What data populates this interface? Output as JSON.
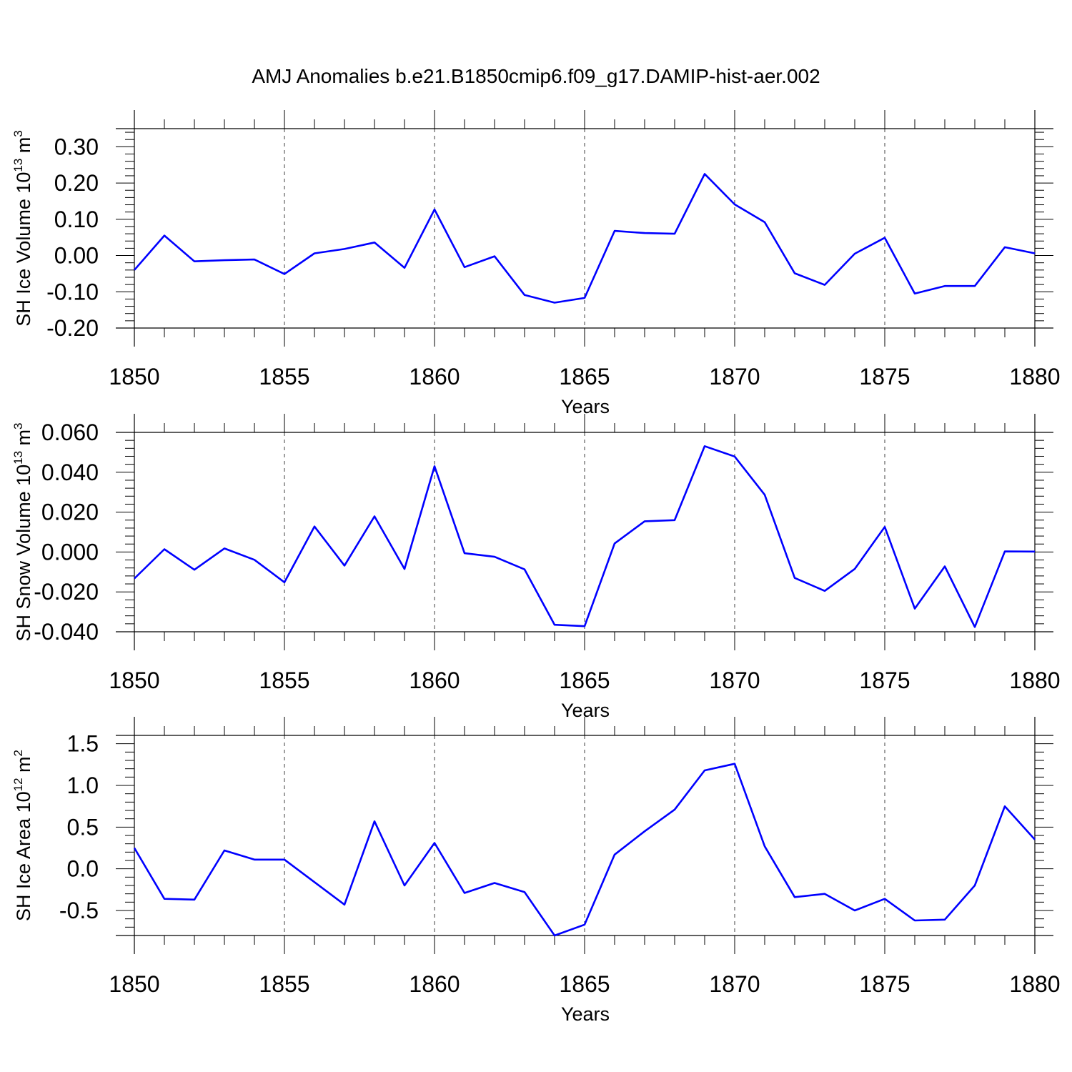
{
  "title": "AMJ Anomalies b.e21.B1850cmip6.f09_g17.DAMIP-hist-aer.002",
  "colors": {
    "line": "#0000ff",
    "axis": "#000000",
    "grid": "#000000"
  },
  "chart_data": [
    {
      "type": "line",
      "title": "AMJ Anomalies b.e21.B1850cmip6.f09_g17.DAMIP-hist-aer.002",
      "xlabel": "Years",
      "ylabel": {
        "base": "SH Ice Volume 10",
        "exp1": "13",
        "unit": " m",
        "exp2": "3"
      },
      "xlim": [
        1850,
        1880
      ],
      "ylim": [
        -0.2,
        0.35
      ],
      "grid": "dashed vertical at major x ticks",
      "x_ticks": [
        1850,
        1855,
        1860,
        1865,
        1870,
        1875,
        1880
      ],
      "x_tick_labels": [
        "1850",
        "1855",
        "1860",
        "1865",
        "1870",
        "1875",
        "1880"
      ],
      "y_ticks": [
        -0.2,
        -0.1,
        0.0,
        0.1,
        0.2,
        0.3
      ],
      "y_tick_labels": [
        "-0.20",
        "-0.10",
        "0.00",
        "0.10",
        "0.20",
        "0.30"
      ],
      "y_minor_step": 0.02,
      "x": [
        1850,
        1851,
        1852,
        1853,
        1854,
        1855,
        1856,
        1857,
        1858,
        1859,
        1860,
        1861,
        1862,
        1863,
        1864,
        1865,
        1866,
        1867,
        1868,
        1869,
        1870,
        1871,
        1872,
        1873,
        1874,
        1875,
        1876,
        1877,
        1878,
        1879,
        1880
      ],
      "series": [
        {
          "name": "SH Ice Volume",
          "values": [
            -0.04,
            0.055,
            -0.016,
            -0.013,
            -0.011,
            -0.051,
            0.006,
            0.018,
            0.036,
            -0.034,
            0.127,
            -0.032,
            -0.002,
            -0.109,
            -0.13,
            -0.117,
            0.068,
            0.062,
            0.06,
            0.225,
            0.141,
            0.092,
            -0.049,
            -0.081,
            0.005,
            0.049,
            -0.105,
            -0.084,
            -0.084,
            0.023,
            0.006
          ]
        }
      ]
    },
    {
      "type": "line",
      "title": "",
      "xlabel": "Years",
      "ylabel": {
        "base": "SH Snow Volume 10",
        "exp1": "13",
        "unit": " m",
        "exp2": "3"
      },
      "xlim": [
        1850,
        1880
      ],
      "ylim": [
        -0.04,
        0.06
      ],
      "grid": "dashed vertical at major x ticks",
      "x_ticks": [
        1850,
        1855,
        1860,
        1865,
        1870,
        1875,
        1880
      ],
      "x_tick_labels": [
        "1850",
        "1855",
        "1860",
        "1865",
        "1870",
        "1875",
        "1880"
      ],
      "y_ticks": [
        -0.04,
        -0.02,
        0.0,
        0.02,
        0.04,
        0.06
      ],
      "y_tick_labels": [
        "-0.040",
        "-0.020",
        "0.000",
        "0.020",
        "0.040",
        "0.060"
      ],
      "y_minor_step": 0.004,
      "x": [
        1850,
        1851,
        1852,
        1853,
        1854,
        1855,
        1856,
        1857,
        1858,
        1859,
        1860,
        1861,
        1862,
        1863,
        1864,
        1865,
        1866,
        1867,
        1868,
        1869,
        1870,
        1871,
        1872,
        1873,
        1874,
        1875,
        1876,
        1877,
        1878,
        1879,
        1880
      ],
      "series": [
        {
          "name": "SH Snow Volume",
          "values": [
            -0.0133,
            0.0014,
            -0.0089,
            0.0018,
            -0.0039,
            -0.0152,
            0.0128,
            -0.0068,
            0.0179,
            -0.0085,
            0.043,
            -0.0006,
            -0.0024,
            -0.0087,
            -0.0365,
            -0.0372,
            0.0043,
            0.0154,
            0.016,
            0.0531,
            0.0479,
            0.0287,
            -0.013,
            -0.0195,
            -0.0085,
            0.0126,
            -0.0284,
            -0.0072,
            -0.0376,
            0.0003,
            0.0002
          ]
        }
      ]
    },
    {
      "type": "line",
      "title": "",
      "xlabel": "Years",
      "ylabel": {
        "base": "SH Ice Area 10",
        "exp1": "12",
        "unit": " m",
        "exp2": "2"
      },
      "xlim": [
        1850,
        1880
      ],
      "ylim": [
        -0.8,
        1.6
      ],
      "grid": "dashed vertical at major x ticks",
      "x_ticks": [
        1850,
        1855,
        1860,
        1865,
        1870,
        1875,
        1880
      ],
      "x_tick_labels": [
        "1850",
        "1855",
        "1860",
        "1865",
        "1870",
        "1875",
        "1880"
      ],
      "y_ticks": [
        -0.5,
        0.0,
        0.5,
        1.0,
        1.5
      ],
      "y_tick_labels": [
        "-0.5",
        "0.0",
        "0.5",
        "1.0",
        "1.5"
      ],
      "y_minor_step": 0.1,
      "x": [
        1850,
        1851,
        1852,
        1853,
        1854,
        1855,
        1856,
        1857,
        1858,
        1859,
        1860,
        1861,
        1862,
        1863,
        1864,
        1865,
        1866,
        1867,
        1868,
        1869,
        1870,
        1871,
        1872,
        1873,
        1874,
        1875,
        1876,
        1877,
        1878,
        1879,
        1880
      ],
      "series": [
        {
          "name": "SH Ice Area",
          "values": [
            0.25,
            -0.36,
            -0.37,
            0.22,
            0.11,
            0.11,
            -0.16,
            -0.43,
            0.57,
            -0.2,
            0.31,
            -0.29,
            -0.17,
            -0.28,
            -0.8,
            -0.67,
            0.17,
            0.45,
            0.71,
            1.18,
            1.26,
            0.27,
            -0.34,
            -0.3,
            -0.5,
            -0.36,
            -0.62,
            -0.61,
            -0.2,
            0.75,
            0.35
          ]
        }
      ]
    }
  ]
}
